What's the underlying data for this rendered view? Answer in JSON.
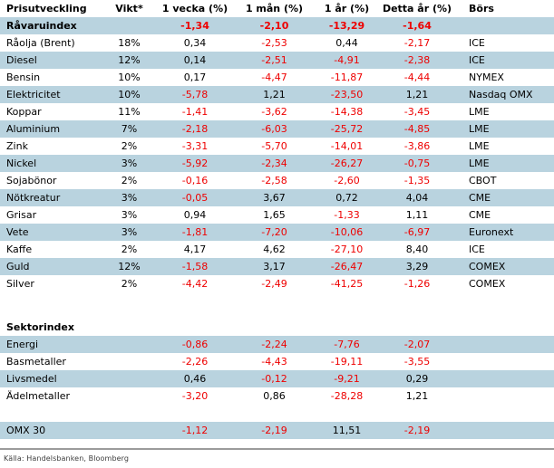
{
  "colors": {
    "highlight_row": "#B9D3DF",
    "negative_value": "#EE0000",
    "divider": "#9B9B9B"
  },
  "table": {
    "rows": [
      {
        "type": "header",
        "bold": true,
        "cells": [
          "Prisutveckling",
          "Vikt*",
          "1 vecka (%)",
          "1 mån (%)",
          "1 år (%)",
          "Detta år (%)",
          "Börs"
        ]
      },
      {
        "type": "data",
        "bold": true,
        "highlight": true,
        "cells": [
          "Råvaruindex",
          "",
          "-1,34",
          "-2,10",
          "-13,29",
          "-1,64",
          ""
        ]
      },
      {
        "type": "data",
        "cells": [
          "Råolja (Brent)",
          "18%",
          "0,34",
          "-2,53",
          "0,44",
          "-2,17",
          "ICE"
        ]
      },
      {
        "type": "data",
        "highlight": true,
        "cells": [
          "Diesel",
          "12%",
          "0,14",
          "-2,51",
          "-4,91",
          "-2,38",
          "ICE"
        ]
      },
      {
        "type": "data",
        "cells": [
          "Bensin",
          "10%",
          "0,17",
          "-4,47",
          "-11,87",
          "-4,44",
          "NYMEX"
        ]
      },
      {
        "type": "data",
        "highlight": true,
        "cells": [
          "Elektricitet",
          "10%",
          "-5,78",
          "1,21",
          "-23,50",
          "1,21",
          "Nasdaq OMX"
        ]
      },
      {
        "type": "data",
        "cells": [
          "Koppar",
          "11%",
          "-1,41",
          "-3,62",
          "-14,38",
          "-3,45",
          "LME"
        ]
      },
      {
        "type": "data",
        "highlight": true,
        "cells": [
          "Aluminium",
          "7%",
          "-2,18",
          "-6,03",
          "-25,72",
          "-4,85",
          "LME"
        ]
      },
      {
        "type": "data",
        "cells": [
          "Zink",
          "2%",
          "-3,31",
          "-5,70",
          "-14,01",
          "-3,86",
          "LME"
        ]
      },
      {
        "type": "data",
        "highlight": true,
        "cells": [
          "Nickel",
          "3%",
          "-5,92",
          "-2,34",
          "-26,27",
          "-0,75",
          "LME"
        ]
      },
      {
        "type": "data",
        "cells": [
          "Sojabönor",
          "2%",
          "-0,16",
          "-2,58",
          "-2,60",
          "-1,35",
          "CBOT"
        ]
      },
      {
        "type": "data",
        "highlight": true,
        "cells": [
          "Nötkreatur",
          "3%",
          "-0,05",
          "3,67",
          "0,72",
          "4,04",
          "CME"
        ]
      },
      {
        "type": "data",
        "cells": [
          "Grisar",
          "3%",
          "0,94",
          "1,65",
          "-1,33",
          "1,11",
          "CME"
        ]
      },
      {
        "type": "data",
        "highlight": true,
        "cells": [
          "Vete",
          "3%",
          "-1,81",
          "-7,20",
          "-10,06",
          "-6,97",
          "Euronext"
        ]
      },
      {
        "type": "data",
        "cells": [
          "Kaffe",
          "2%",
          "4,17",
          "4,62",
          "-27,10",
          "8,40",
          "ICE"
        ]
      },
      {
        "type": "data",
        "highlight": true,
        "cells": [
          "Guld",
          "12%",
          "-1,58",
          "3,17",
          "-26,47",
          "3,29",
          "COMEX"
        ]
      },
      {
        "type": "data",
        "cells": [
          "Silver",
          "2%",
          "-4,42",
          "-2,49",
          "-41,25",
          "-1,26",
          "COMEX"
        ]
      },
      {
        "type": "spacer",
        "height": 29
      },
      {
        "type": "data",
        "bold": true,
        "cells": [
          "Sektorindex",
          "",
          "",
          "",
          "",
          "",
          ""
        ]
      },
      {
        "type": "data",
        "highlight": true,
        "cells": [
          "Energi",
          "",
          "-0,86",
          "-2,24",
          "-7,76",
          "-2,07",
          ""
        ]
      },
      {
        "type": "data",
        "cells": [
          "Basmetaller",
          "",
          "-2,26",
          "-4,43",
          "-19,11",
          "-3,55",
          ""
        ]
      },
      {
        "type": "data",
        "highlight": true,
        "cells": [
          "Livsmedel",
          "",
          "0,46",
          "-0,12",
          "-9,21",
          "0,29",
          ""
        ]
      },
      {
        "type": "data",
        "cells": [
          "Ädelmetaller",
          "",
          "-3,20",
          "0,86",
          "-28,28",
          "1,21",
          ""
        ]
      },
      {
        "type": "spacer",
        "height": 19
      },
      {
        "type": "data",
        "highlight": true,
        "cells": [
          "OMX 30",
          "",
          "-1,12",
          "-2,19",
          "11,51",
          "-2,19",
          ""
        ]
      }
    ]
  },
  "footer": {
    "source": "Källa: Handelsbanken, Bloomberg"
  }
}
